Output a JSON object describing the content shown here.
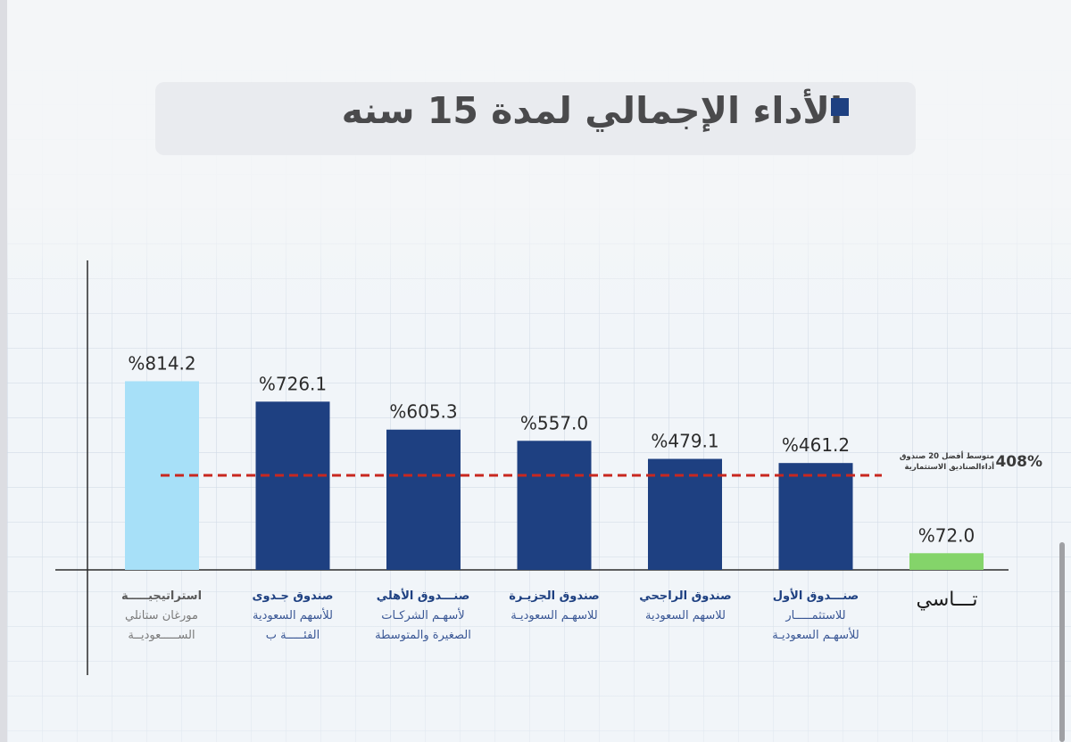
{
  "title": "الأداء الإجمالي لمدة 15 سنه",
  "colors": {
    "fund_bar": "#1e4081",
    "strategy_bar": "#a7e0f8",
    "index_bar": "#84d46a",
    "avg_line": "#c8271f",
    "value_label": "#2b2b2b"
  },
  "chart_data": {
    "type": "bar",
    "title": "الأداء الإجمالي لمدة 15 سنه",
    "xlabel": "",
    "ylabel": "",
    "ylim": [
      0,
      900
    ],
    "grid": true,
    "value_unit": "%",
    "categories": [
      "استراتيجية مورغان ستانلي السعودية",
      "صندوق جدوى للأسهم السعودية الفئة ب",
      "صندوق الأهلي لأسهم الشركات الصغيرة والمتوسطة",
      "صندوق الجزيرة للأسهم السعودية",
      "صندوق الراجحي للأسهم السعودية",
      "صندوق الأول للاستثمار للأسهم السعودية",
      "تاسي"
    ],
    "values": [
      814.2,
      726.1,
      605.3,
      557.0,
      479.1,
      461.2,
      72.0
    ],
    "value_labels": [
      "%814.2",
      "%726.1",
      "%605.3",
      "%557.0",
      "%479.1",
      "%461.2",
      "%72.0"
    ],
    "bar_kind": [
      "strategy",
      "fund",
      "fund",
      "fund",
      "fund",
      "fund",
      "index"
    ],
    "reference_line": {
      "value": 408,
      "label_value": "408%",
      "label_lines": [
        "متوسط أفضل 20 صندوق",
        "أداءالصناديق الاستثمارية"
      ]
    }
  },
  "categories_display": [
    {
      "line1": "استراتيجيـــــة",
      "line2": "مورغان ستانلي",
      "line3": "الســـــعوديــة"
    },
    {
      "line1": "صندوق جـدوى",
      "line2": "للأسهم السعودية",
      "line3": "الفئـــــة ب"
    },
    {
      "line1": "صنـــدوق الأهلي",
      "line2": "لأسهـم الشركـات",
      "line3": "الصغيرة والمتوسطة"
    },
    {
      "line1": "صندوق الجزيـرة",
      "line2": "للاسهـم السعوديـة",
      "line3": ""
    },
    {
      "line1": "صندوق الراجحي",
      "line2": "للاسهم السعودية",
      "line3": ""
    },
    {
      "line1": "صنـــدوق الأول",
      "line2": "للاستثمـــــار",
      "line3": "للأسهـم السعوديـة"
    },
    {
      "line1": "تـــاسي",
      "line2": "",
      "line3": ""
    }
  ]
}
